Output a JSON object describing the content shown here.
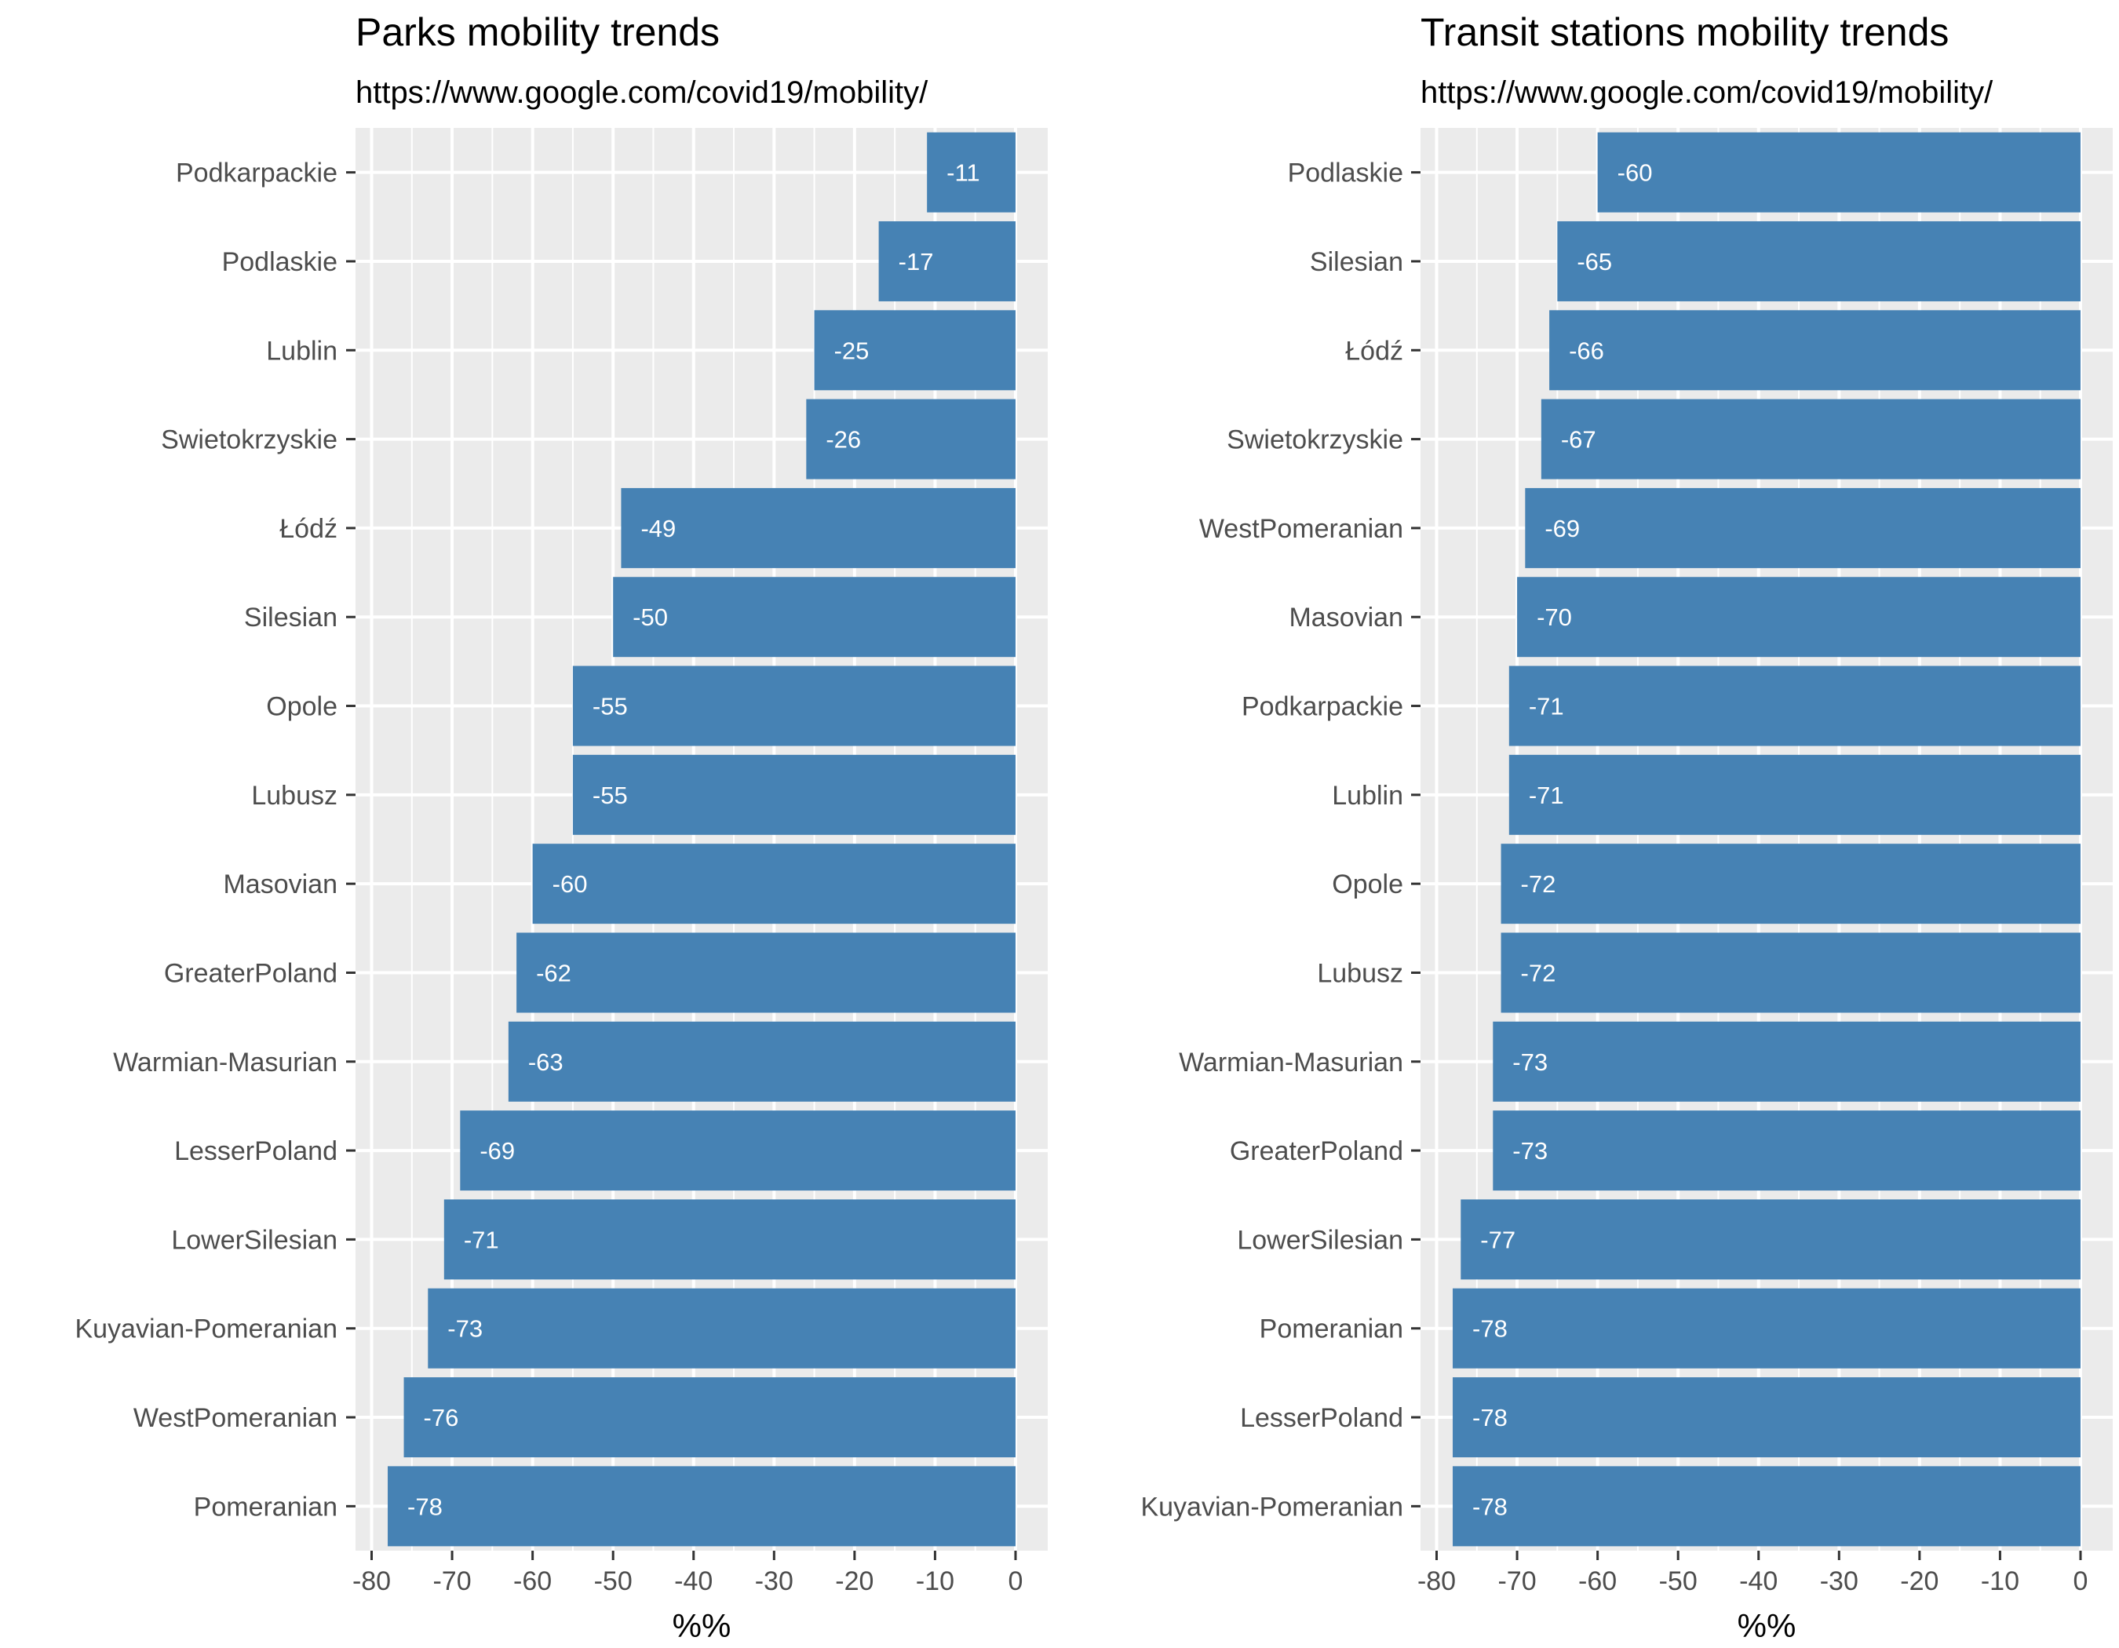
{
  "chart_data": [
    {
      "type": "bar",
      "orientation": "horizontal",
      "title": "Parks mobility trends",
      "subtitle": "https://www.google.com/covid19/mobility/",
      "xlabel": "%%",
      "ylabel": "",
      "xlim": [
        -80,
        0
      ],
      "xticks": [
        "-80",
        "-70",
        "-60",
        "-50",
        "-40",
        "-30",
        "-20",
        "-10",
        "0"
      ],
      "grid": true,
      "bar_color": "#4682B4",
      "panel_color": "#EBEBEB",
      "categories": [
        "Podkarpackie",
        "Podlaskie",
        "Lublin",
        "Swietokrzyskie",
        "Łódź",
        "Silesian",
        "Opole",
        "Lubusz",
        "Masovian",
        "GreaterPoland",
        "Warmian-Masurian",
        "LesserPoland",
        "LowerSilesian",
        "Kuyavian-Pomeranian",
        "WestPomeranian",
        "Pomeranian"
      ],
      "values": [
        -11,
        -17,
        -25,
        -26,
        -49,
        -50,
        -55,
        -55,
        -60,
        -62,
        -63,
        -69,
        -71,
        -73,
        -76,
        -78
      ],
      "labels": [
        "-11",
        "-17",
        "-25",
        "-26",
        "-49",
        "-50",
        "-55",
        "-55",
        "-60",
        "-62",
        "-63",
        "-69",
        "-71",
        "-73",
        "-76",
        "-78"
      ]
    },
    {
      "type": "bar",
      "orientation": "horizontal",
      "title": "Transit stations mobility trends",
      "subtitle": "https://www.google.com/covid19/mobility/",
      "xlabel": "%%",
      "ylabel": "",
      "xlim": [
        -80,
        0
      ],
      "xticks": [
        "-80",
        "-70",
        "-60",
        "-50",
        "-40",
        "-30",
        "-20",
        "-10",
        "0"
      ],
      "grid": true,
      "bar_color": "#4682B4",
      "panel_color": "#EBEBEB",
      "categories": [
        "Podlaskie",
        "Silesian",
        "Łódź",
        "Swietokrzyskie",
        "WestPomeranian",
        "Masovian",
        "Podkarpackie",
        "Lublin",
        "Opole",
        "Lubusz",
        "Warmian-Masurian",
        "GreaterPoland",
        "LowerSilesian",
        "Pomeranian",
        "LesserPoland",
        "Kuyavian-Pomeranian"
      ],
      "values": [
        -60,
        -65,
        -66,
        -67,
        -69,
        -70,
        -71,
        -71,
        -72,
        -72,
        -73,
        -73,
        -77,
        -78,
        -78,
        -78
      ],
      "labels": [
        "-60",
        "-65",
        "-66",
        "-67",
        "-69",
        "-70",
        "-71",
        "-71",
        "-72",
        "-72",
        "-73",
        "-73",
        "-77",
        "-78",
        "-78",
        "-78"
      ]
    }
  ]
}
